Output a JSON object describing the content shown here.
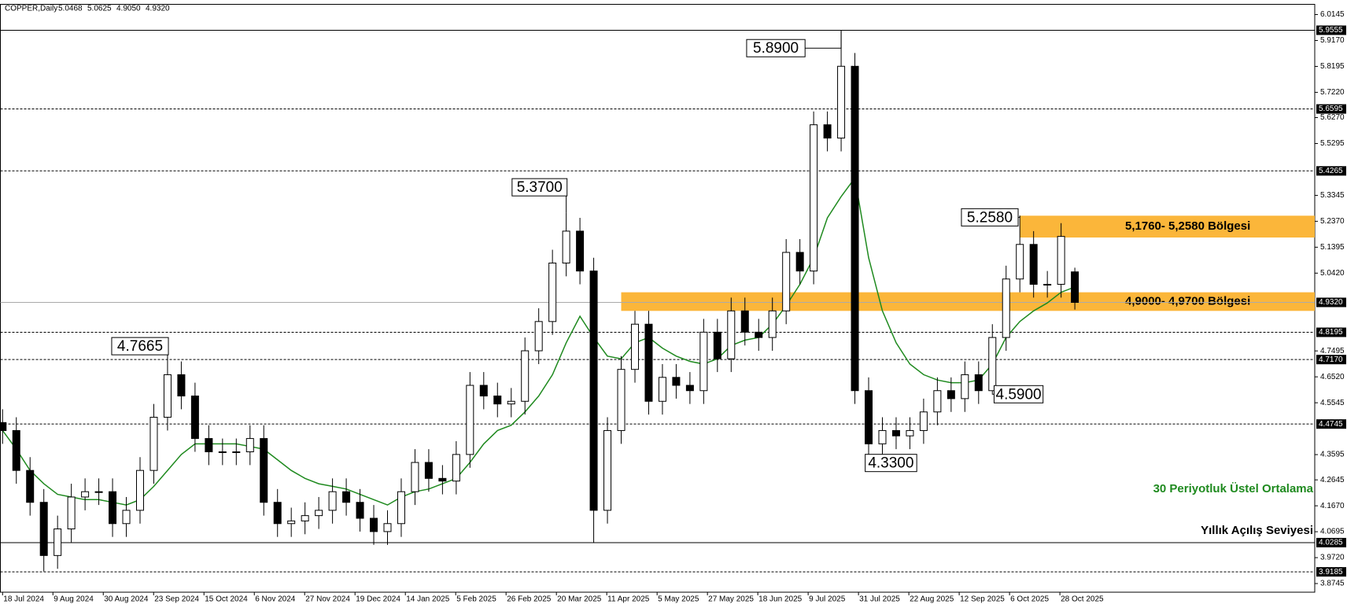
{
  "chart_data": {
    "type": "candlestick",
    "header": {
      "symbol": "COPPER,Daily",
      "ohlc": [
        "5.0468",
        "5.0625",
        "4.9050",
        "4.9320"
      ]
    },
    "open": [
      4.48,
      4.45,
      4.3,
      4.18,
      3.98,
      4.08,
      4.2,
      4.22,
      4.22,
      4.1,
      4.15,
      4.3,
      4.5,
      4.66,
      4.58,
      4.42,
      4.37,
      4.37,
      4.37,
      4.42,
      4.18,
      4.1,
      4.11,
      4.13,
      4.15,
      4.22,
      4.18,
      4.12,
      4.07,
      4.1,
      4.22,
      4.33,
      4.27,
      4.26,
      4.36,
      4.62,
      4.58,
      4.55,
      4.56,
      4.75,
      4.86,
      5.08,
      5.2,
      5.05,
      4.15,
      4.45,
      4.68,
      4.85,
      4.56,
      4.65,
      4.62,
      4.6,
      4.82,
      4.72,
      4.9,
      4.82,
      4.8,
      4.9,
      5.12,
      5.05,
      5.6,
      5.55,
      5.82,
      4.6,
      4.4,
      4.45,
      4.43,
      4.45,
      4.52,
      4.6,
      4.57,
      4.66,
      4.6,
      4.8,
      5.02,
      5.15,
      5.0,
      5.0,
      5.0468
    ],
    "high": [
      4.53,
      4.5,
      4.35,
      4.23,
      4.13,
      4.25,
      4.27,
      4.27,
      4.27,
      4.2,
      4.35,
      4.55,
      4.7665,
      4.71,
      4.63,
      4.47,
      4.42,
      4.42,
      4.47,
      4.47,
      4.23,
      4.16,
      4.18,
      4.2,
      4.27,
      4.27,
      4.23,
      4.17,
      4.15,
      4.27,
      4.38,
      4.38,
      4.32,
      4.41,
      4.67,
      4.67,
      4.63,
      4.61,
      4.8,
      4.91,
      5.13,
      5.27,
      5.25,
      5.1,
      4.5,
      4.73,
      4.9,
      4.9,
      4.7,
      4.7,
      4.67,
      4.87,
      4.87,
      4.95,
      4.95,
      4.87,
      4.95,
      5.17,
      5.17,
      5.65,
      5.65,
      5.9555,
      5.87,
      4.65,
      4.5,
      4.5,
      4.5,
      4.57,
      4.65,
      4.65,
      4.71,
      4.71,
      4.85,
      5.07,
      5.258,
      5.2,
      5.05,
      5.23,
      5.0625
    ],
    "low": [
      4.4,
      4.25,
      4.13,
      3.92,
      3.93,
      4.03,
      4.15,
      4.17,
      4.05,
      4.05,
      4.1,
      4.25,
      4.45,
      4.53,
      4.37,
      4.32,
      4.32,
      4.32,
      4.32,
      4.13,
      4.05,
      4.05,
      4.06,
      4.08,
      4.1,
      4.13,
      4.07,
      4.02,
      4.02,
      4.05,
      4.17,
      4.22,
      4.21,
      4.21,
      4.31,
      4.53,
      4.5,
      4.5,
      4.51,
      4.7,
      4.81,
      5.03,
      5.0,
      4.03,
      4.1,
      4.4,
      4.63,
      4.51,
      4.51,
      4.57,
      4.55,
      4.55,
      4.67,
      4.67,
      4.77,
      4.75,
      4.75,
      4.85,
      5.0,
      5.0,
      5.5,
      5.5,
      4.55,
      4.33,
      4.35,
      4.38,
      4.38,
      4.4,
      4.47,
      4.52,
      4.52,
      4.55,
      4.59,
      4.75,
      4.97,
      4.95,
      4.95,
      4.95,
      4.905
    ],
    "close": [
      4.45,
      4.3,
      4.18,
      3.98,
      4.08,
      4.2,
      4.22,
      4.22,
      4.1,
      4.15,
      4.3,
      4.5,
      4.66,
      4.58,
      4.42,
      4.37,
      4.37,
      4.37,
      4.42,
      4.18,
      4.1,
      4.11,
      4.13,
      4.15,
      4.22,
      4.18,
      4.12,
      4.07,
      4.1,
      4.22,
      4.33,
      4.27,
      4.26,
      4.36,
      4.62,
      4.58,
      4.55,
      4.56,
      4.75,
      4.86,
      5.08,
      5.2,
      5.05,
      4.15,
      4.45,
      4.68,
      4.85,
      4.56,
      4.65,
      4.62,
      4.6,
      4.82,
      4.72,
      4.9,
      4.82,
      4.8,
      4.9,
      5.12,
      5.05,
      5.6,
      5.55,
      5.82,
      4.6,
      4.4,
      4.45,
      4.43,
      4.45,
      4.52,
      4.6,
      4.57,
      4.66,
      4.6,
      4.8,
      5.02,
      5.15,
      5.0,
      5.0,
      5.18,
      4.932
    ],
    "ema": {
      "name": "30 Periyotluk Üstel Ortalama",
      "color": "#1f8a1f",
      "values": [
        4.45,
        4.38,
        4.3,
        4.25,
        4.21,
        4.2,
        4.19,
        4.19,
        4.18,
        4.17,
        4.19,
        4.24,
        4.3,
        4.36,
        4.4,
        4.4,
        4.4,
        4.4,
        4.39,
        4.38,
        4.34,
        4.3,
        4.27,
        4.25,
        4.24,
        4.23,
        4.21,
        4.19,
        4.17,
        4.2,
        4.22,
        4.23,
        4.25,
        4.27,
        4.33,
        4.4,
        4.45,
        4.47,
        4.52,
        4.58,
        4.66,
        4.78,
        4.88,
        4.8,
        4.73,
        4.72,
        4.78,
        4.8,
        4.76,
        4.73,
        4.71,
        4.7,
        4.72,
        4.77,
        4.79,
        4.8,
        4.85,
        4.92,
        5.0,
        5.1,
        5.25,
        5.33,
        5.4,
        5.1,
        4.9,
        4.78,
        4.7,
        4.66,
        4.64,
        4.63,
        4.63,
        4.64,
        4.7,
        4.8,
        4.86,
        4.9,
        4.93,
        4.97,
        4.99
      ]
    },
    "xlabels": [
      "18 Jul 2024",
      "9 Aug 2024",
      "30 Aug 2024",
      "23 Sep 2024",
      "15 Oct 2024",
      "6 Nov 2024",
      "27 Nov 2024",
      "19 Dec 2024",
      "14 Jan 2025",
      "5 Feb 2025",
      "26 Feb 2025",
      "20 Mar 2025",
      "11 Apr 2025",
      "5 May 2025",
      "27 May 2025",
      "18 Jun 2025",
      "9 Jul 2025",
      "31 Jul 2025",
      "22 Aug 2025",
      "12 Sep 2025",
      "6 Oct 2025",
      "28 Oct 2025"
    ],
    "ylim": [
      3.842,
      6.053
    ],
    "yticks": [
      6.0145,
      {
        "value": 5.917,
        "label": "5.9170"
      },
      5.8195,
      {
        "value": 5.722,
        "label": "5.7220"
      },
      {
        "value": 5.627,
        "label": "5.6270"
      },
      5.5295,
      5.3345,
      {
        "value": 5.237,
        "label": "5.2370"
      },
      5.1395,
      {
        "value": 5.042,
        "label": "5.0420"
      },
      4.7495,
      {
        "value": 4.652,
        "label": "4.6520"
      },
      4.5545,
      4.3595,
      4.2645,
      {
        "value": 4.167,
        "label": "4.1670"
      },
      4.0695,
      {
        "value": 3.972,
        "label": "3.9720"
      },
      3.8745
    ],
    "levels": [
      {
        "value": 5.9555,
        "style": "solid"
      },
      {
        "value": 5.6595,
        "style": "dashed"
      },
      {
        "value": 5.4265,
        "style": "dashed"
      },
      {
        "value": 4.932,
        "label": "4.9320",
        "style": "price"
      },
      {
        "value": 4.8195,
        "style": "dashed"
      },
      {
        "value": 4.717,
        "label": "4.7170",
        "style": "dashed"
      },
      {
        "value": 4.4745,
        "style": "dashed"
      },
      {
        "value": 4.0285,
        "style": "solid"
      },
      {
        "value": 3.9185,
        "style": "dashed"
      }
    ],
    "zones": [
      {
        "low": 5.176,
        "high": 5.258,
        "from_candle": 74,
        "label": "5,1760- 5,2580 Bölgesi",
        "color": "#fbb63a"
      },
      {
        "low": 4.9,
        "high": 4.97,
        "from_candle": 45,
        "label": "4,9000- 4,9700 Bölgesi",
        "color": "#fbb63a"
      }
    ],
    "annotations": [
      "5.3700",
      "4.7665",
      "5.8900",
      "5.2580",
      "4.5900",
      "4.3300"
    ],
    "level_note": "Yıllık Açılış Seviyesi",
    "colors": {
      "up": "#ffffff",
      "down": "#000000",
      "outline": "#000000"
    }
  }
}
